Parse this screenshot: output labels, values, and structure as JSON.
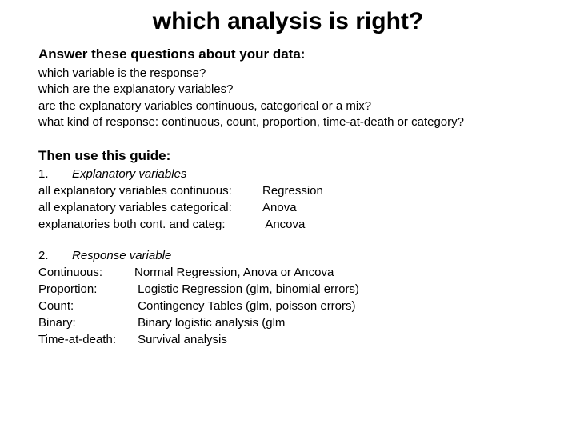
{
  "title": "which analysis is right?",
  "answer_heading": "Answer these questions about your data:",
  "questions": {
    "q1": "which variable is the response?",
    "q2": "which are the explanatory variables?",
    "q3": "are the explanatory variables continuous, categorical or a mix?",
    "q4": "what kind of response:  continuous, count, proportion, time-at-death or category?"
  },
  "guide_heading": "Then use this guide:",
  "section1": {
    "num": "1.",
    "label": "Explanatory variables",
    "rows": {
      "r1l": "all explanatory variables continuous:",
      "r1r": "Regression",
      "r2l": "all explanatory variables categorical:",
      "r2r": "Anova",
      "r3l": "explanatories both cont. and categ:",
      "r3r": " Ancova"
    }
  },
  "section2": {
    "num": "2.",
    "label": "Response variable",
    "rows": {
      "r1l": "Continuous:",
      "r1r": "Normal Regression, Anova or Ancova",
      "r2l": "Proportion:",
      "r2r": " Logistic Regression (glm, binomial errors)",
      "r3l": "Count:",
      "r3r": " Contingency Tables (glm, poisson errors)",
      "r4l": "Binary:",
      "r4r": " Binary logistic analysis (glm",
      "r5l": "Time-at-death:",
      "r5r": " Survival analysis"
    }
  }
}
